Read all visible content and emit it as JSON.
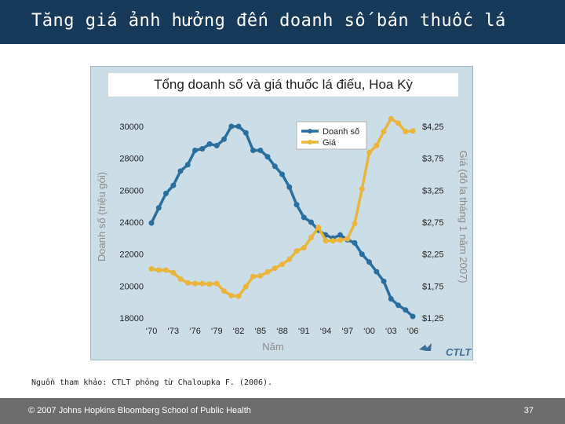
{
  "slide": {
    "title": "Tăng giá ảnh hưởng đến doanh số bán thuốc lá",
    "source": "Nguồn tham khảo: CTLT phỏng từ Chaloupka F. (2006).",
    "footer": "© 2007 Johns Hopkins Bloomberg School of Public Health",
    "page_number": "37",
    "logo_text": "CTLT"
  },
  "colors": {
    "sales": "#2a6e9e",
    "price": "#e9b53b",
    "header": "#173a5a"
  },
  "chart_data": {
    "type": "line",
    "title": "Tổng doanh số và giá thuốc lá điếu, Hoa Kỳ",
    "xlabel": "Năm",
    "ylabel": "Doanh số (triệu gói)",
    "y2label": "Giá (đô la tháng 1 năm 2007)",
    "xlim": [
      1970,
      2006
    ],
    "ylim": [
      18000,
      30000
    ],
    "y2lim": [
      1.25,
      4.25
    ],
    "x_ticks": [
      "‘70",
      "‘73",
      "‘76",
      "‘79",
      "‘82",
      "‘85",
      "‘88",
      "‘91",
      "‘94",
      "‘97",
      "‘00",
      "‘03",
      "‘06"
    ],
    "x_tick_values": [
      1970,
      1973,
      1976,
      1979,
      1982,
      1985,
      1988,
      1991,
      1994,
      1997,
      2000,
      2003,
      2006
    ],
    "y_ticks": [
      "18000",
      "20000",
      "22000",
      "24000",
      "26000",
      "28000",
      "30000"
    ],
    "y_tick_values": [
      18000,
      20000,
      22000,
      24000,
      26000,
      28000,
      30000
    ],
    "y2_ticks": [
      "$1,25",
      "$1,75",
      "$2,25",
      "$2,75",
      "$3,25",
      "$3,75",
      "$4,25"
    ],
    "y2_tick_values": [
      1.25,
      1.75,
      2.25,
      2.75,
      3.25,
      3.75,
      4.25
    ],
    "legend": "top-right",
    "series": [
      {
        "name": "Doanh số",
        "axis": "left",
        "x": [
          1970,
          1971,
          1972,
          1973,
          1974,
          1975,
          1976,
          1977,
          1978,
          1979,
          1980,
          1981,
          1982,
          1983,
          1984,
          1985,
          1986,
          1987,
          1988,
          1989,
          1990,
          1991,
          1992,
          1993,
          1994,
          1995,
          1996,
          1997,
          1998,
          1999,
          2000,
          2001,
          2002,
          2003,
          2004,
          2005,
          2006
        ],
        "values": [
          23950,
          24900,
          25800,
          26300,
          27200,
          27600,
          28500,
          28600,
          28900,
          28800,
          29200,
          30000,
          30000,
          29600,
          28500,
          28500,
          28100,
          27500,
          27000,
          26200,
          25100,
          24300,
          24000,
          23500,
          23200,
          23000,
          23200,
          22900,
          22700,
          22000,
          21500,
          20900,
          20300,
          19200,
          18800,
          18500,
          18100
        ]
      },
      {
        "name": "Giá",
        "axis": "right",
        "x": [
          1970,
          1971,
          1972,
          1973,
          1974,
          1975,
          1976,
          1977,
          1978,
          1979,
          1980,
          1981,
          1982,
          1983,
          1984,
          1985,
          1986,
          1987,
          1988,
          1989,
          1990,
          1991,
          1992,
          1993,
          1994,
          1995,
          1996,
          1997,
          1998,
          1999,
          2000,
          2001,
          2002,
          2003,
          2004,
          2005,
          2006
        ],
        "values": [
          2.02,
          2.0,
          2.0,
          1.96,
          1.86,
          1.8,
          1.79,
          1.79,
          1.78,
          1.79,
          1.67,
          1.6,
          1.59,
          1.74,
          1.9,
          1.91,
          1.97,
          2.03,
          2.09,
          2.17,
          2.3,
          2.35,
          2.51,
          2.67,
          2.46,
          2.46,
          2.47,
          2.49,
          2.73,
          3.27,
          3.84,
          3.95,
          4.17,
          4.37,
          4.3,
          4.17,
          4.18
        ]
      }
    ]
  }
}
